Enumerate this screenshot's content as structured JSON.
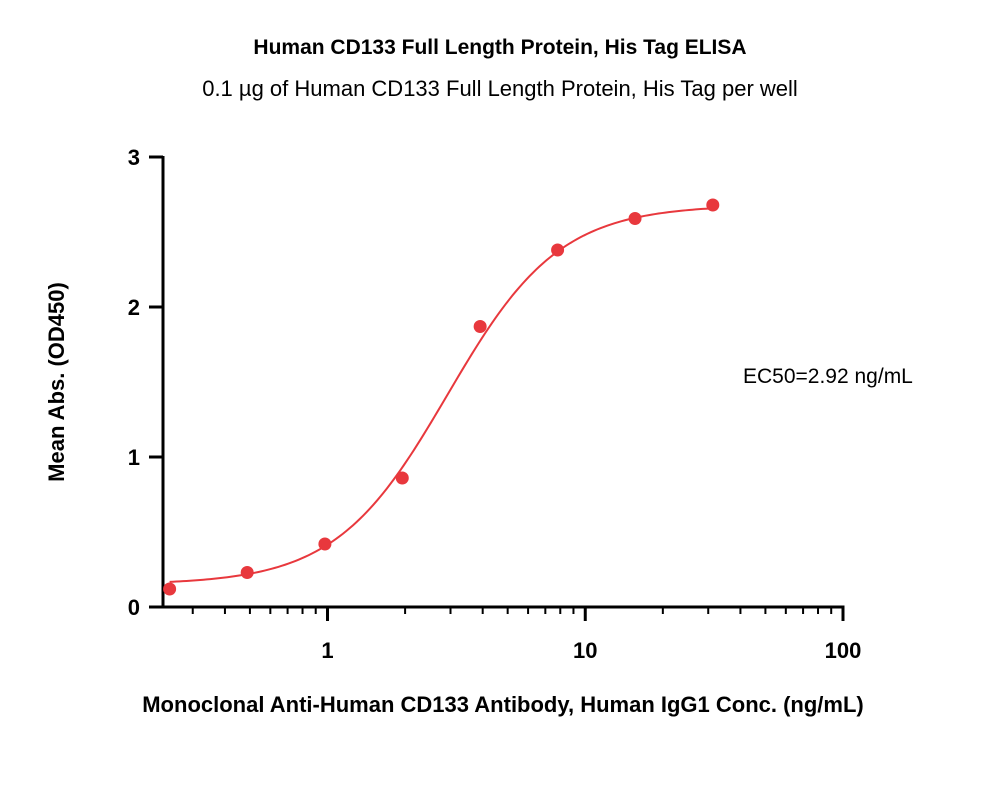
{
  "chart_data": {
    "type": "scatter",
    "title": "Human CD133 Full Length Protein, His Tag ELISA",
    "subtitle": "0.1 µg of Human CD133 Full Length Protein, His Tag per well",
    "xlabel": "Monoclonal Anti-Human CD133 Antibody, Human IgG1 Conc. (ng/mL)",
    "ylabel": "Mean Abs. (OD450)",
    "x_scale": "log",
    "xlim": [
      0.23,
      100
    ],
    "ylim": [
      0,
      3
    ],
    "x_ticks": [
      1,
      10,
      100
    ],
    "x_tick_labels": [
      "1",
      "10",
      "100"
    ],
    "y_ticks": [
      0,
      1,
      2,
      3
    ],
    "y_tick_labels": [
      "0",
      "1",
      "2",
      "3"
    ],
    "grid": false,
    "color": "#e8383d",
    "series": [
      {
        "x": [
          0.244,
          0.488,
          0.977,
          1.95,
          3.91,
          7.81,
          15.6,
          31.25
        ],
        "y": [
          0.12,
          0.23,
          0.42,
          0.86,
          1.87,
          2.38,
          2.59,
          2.68
        ]
      }
    ],
    "fit_curve": {
      "bottom": 0.15,
      "top": 2.68,
      "ec50": 2.92,
      "hill": 2.0
    },
    "annotation": "EC50=2.92 ng/mL"
  }
}
